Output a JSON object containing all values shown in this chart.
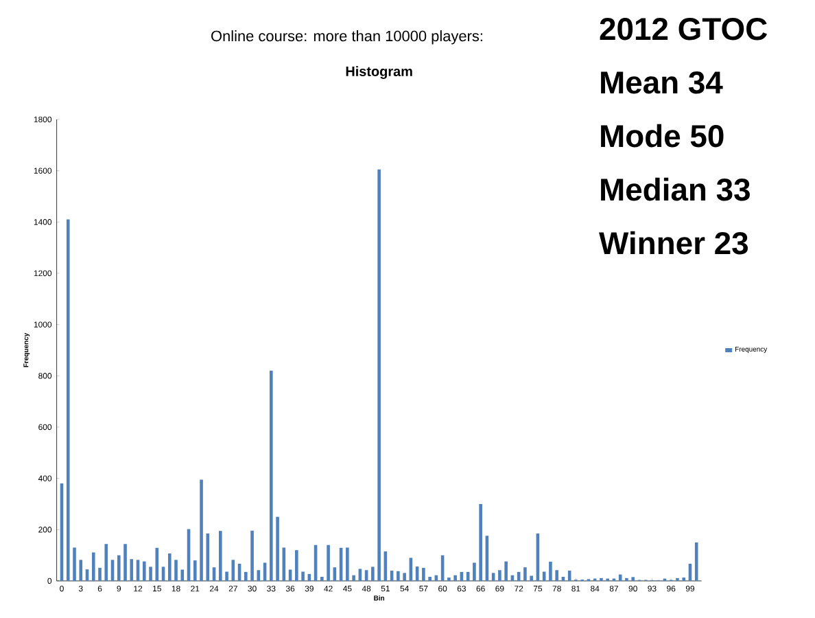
{
  "chart_data": {
    "type": "bar",
    "title": "Histogram",
    "xlabel": "Bin",
    "ylabel": "Frequency",
    "annotations": [
      "Online course:  more than 10000 players:",
      "2012 GTOC",
      "Mean  34",
      "Mode 50",
      "Median  33",
      "Winner  23"
    ],
    "categories": [
      "0",
      null,
      null,
      "3",
      null,
      null,
      "6",
      null,
      null,
      "9",
      null,
      null,
      "12",
      null,
      null,
      "15",
      null,
      null,
      "18",
      null,
      null,
      "21",
      null,
      null,
      "24",
      null,
      null,
      "27",
      null,
      null,
      "30",
      null,
      null,
      "33",
      null,
      null,
      "36",
      null,
      null,
      "39",
      null,
      null,
      "42",
      null,
      null,
      "45",
      null,
      null,
      "48",
      null,
      null,
      "51",
      null,
      null,
      "54",
      null,
      null,
      "57",
      null,
      null,
      "60",
      null,
      null,
      "63",
      null,
      null,
      "66",
      null,
      null,
      "69",
      null,
      null,
      "72",
      null,
      null,
      "75",
      null,
      null,
      "78",
      null,
      null,
      "81",
      null,
      null,
      "84",
      null,
      null,
      "87",
      null,
      null,
      "90",
      null,
      null,
      "93",
      null,
      null,
      "96",
      null,
      null,
      "99",
      null
    ],
    "series": [
      {
        "name": "Frequency",
        "color": "#4f81bd",
        "values": [
          380,
          1410,
          130,
          82,
          45,
          111,
          51,
          144,
          82,
          100,
          144,
          85,
          82,
          76,
          55,
          129,
          55,
          107,
          82,
          44,
          202,
          80,
          395,
          185,
          53,
          195,
          36,
          82,
          67,
          35,
          196,
          42,
          71,
          820,
          250,
          130,
          44,
          120,
          36,
          27,
          140,
          16,
          140,
          53,
          129,
          130,
          22,
          47,
          42,
          55,
          1605,
          115,
          40,
          38,
          31,
          90,
          56,
          51,
          16,
          22,
          100,
          13,
          22,
          35,
          35,
          71,
          300,
          176,
          31,
          42,
          76,
          22,
          35,
          53,
          20,
          185,
          36,
          75,
          42,
          16,
          40,
          5,
          5,
          7,
          9,
          11,
          9,
          9,
          25,
          11,
          15,
          4,
          4,
          3,
          3,
          9,
          4,
          11,
          13,
          67,
          150
        ]
      }
    ],
    "ylim": [
      0,
      1800
    ],
    "yticks": [
      0,
      200,
      400,
      600,
      800,
      1000,
      1200,
      1400,
      1600,
      1800
    ],
    "grid": false,
    "legend": "right"
  }
}
